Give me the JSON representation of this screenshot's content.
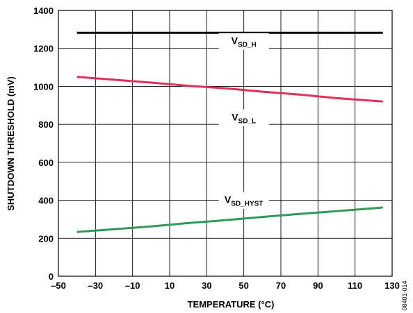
{
  "chart_data": {
    "type": "line",
    "xlabel": "TEMPERATURE (°C)",
    "ylabel": "SHUTDOWN THRESHOLD (mV)",
    "xlim": [
      -50,
      130
    ],
    "ylim": [
      0,
      1400
    ],
    "x_ticks": [
      "–50",
      "–30",
      "–10",
      "10",
      "30",
      "50",
      "70",
      "90",
      "110",
      "130"
    ],
    "y_ticks": [
      "0",
      "200",
      "400",
      "600",
      "800",
      "1000",
      "1200",
      "1400"
    ],
    "grid": true,
    "series": [
      {
        "name": "V_SD_H",
        "label_main": "V",
        "label_sub": "SD_H",
        "color": "#000000",
        "points": [
          [
            -40,
            1282
          ],
          [
            -20,
            1282
          ],
          [
            0,
            1282
          ],
          [
            20,
            1282
          ],
          [
            40,
            1282
          ],
          [
            60,
            1282
          ],
          [
            80,
            1282
          ],
          [
            100,
            1282
          ],
          [
            125,
            1282
          ]
        ]
      },
      {
        "name": "V_SD_L",
        "label_main": "V",
        "label_sub": "SD_L",
        "color": "#e0305a",
        "points": [
          [
            -40,
            1050
          ],
          [
            -20,
            1035
          ],
          [
            0,
            1020
          ],
          [
            20,
            1003
          ],
          [
            40,
            990
          ],
          [
            60,
            972
          ],
          [
            80,
            957
          ],
          [
            100,
            938
          ],
          [
            125,
            920
          ]
        ]
      },
      {
        "name": "V_SD_HYST",
        "label_main": "V",
        "label_sub": "SD_HYST",
        "color": "#2e9a5a",
        "points": [
          [
            -40,
            233
          ],
          [
            -20,
            248
          ],
          [
            0,
            262
          ],
          [
            20,
            280
          ],
          [
            40,
            295
          ],
          [
            60,
            312
          ],
          [
            80,
            328
          ],
          [
            100,
            343
          ],
          [
            125,
            362
          ]
        ]
      }
    ]
  },
  "figure_id": "08401-014"
}
